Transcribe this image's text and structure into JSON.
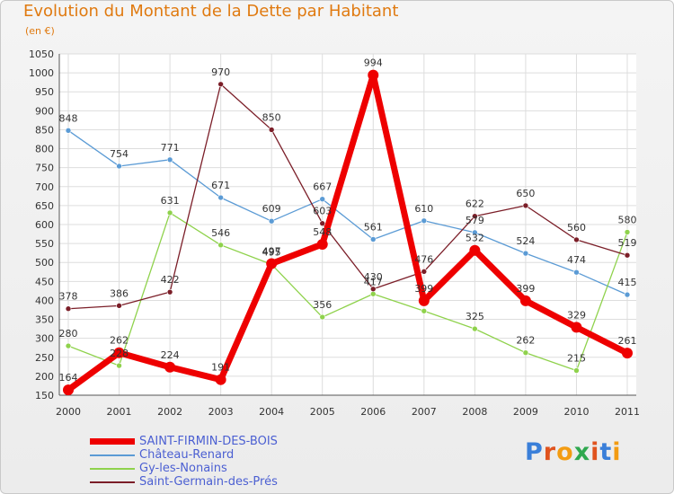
{
  "title": "Evolution du Montant de la Dette par Habitant",
  "subtitle": "(en €)",
  "logo_text": "Proxiti",
  "chart_data": {
    "type": "line",
    "categories": [
      "2000",
      "2001",
      "2002",
      "2003",
      "2004",
      "2005",
      "2006",
      "2007",
      "2008",
      "2009",
      "2010",
      "2011"
    ],
    "ylim": [
      150,
      1050
    ],
    "yticks": [
      150,
      200,
      250,
      300,
      350,
      400,
      450,
      500,
      550,
      600,
      650,
      700,
      750,
      800,
      850,
      900,
      950,
      1000,
      1050
    ],
    "grid": true,
    "legend_position": "bottom-left",
    "series": [
      {
        "name": "SAINT-FIRMIN-DES-BOIS",
        "color": "#ee0000",
        "values": [
          164,
          262,
          224,
          191,
          497,
          548,
          994,
          399,
          532,
          399,
          329,
          261
        ],
        "labels": [
          "164",
          "262",
          "224",
          "191",
          "497",
          "548",
          "994",
          "399",
          "532",
          "399",
          "329",
          "261"
        ]
      },
      {
        "name": "Château-Renard",
        "color": "#5b9bd5",
        "values": [
          848,
          754,
          771,
          671,
          609,
          667,
          561,
          610,
          579,
          524,
          474,
          415
        ],
        "labels": [
          "848",
          "754",
          "771",
          "671",
          "609",
          "667",
          "561",
          "610",
          "579",
          "524",
          "474",
          "415"
        ]
      },
      {
        "name": "Gy-les-Nonains",
        "color": "#8fd24c",
        "values": [
          280,
          228,
          631,
          546,
          495,
          356,
          417,
          372,
          325,
          262,
          215,
          580
        ],
        "labels": [
          "280",
          "228",
          "631",
          "546",
          "495",
          "356",
          "417",
          "",
          "325",
          "262",
          "215",
          "580"
        ]
      },
      {
        "name": "Saint-Germain-des-Prés",
        "color": "#7b1e28",
        "values": [
          378,
          386,
          422,
          970,
          850,
          603,
          430,
          476,
          622,
          650,
          560,
          519
        ],
        "labels": [
          "378",
          "386",
          "422",
          "970",
          "850",
          "603",
          "430",
          "476",
          "622",
          "650",
          "560",
          "519"
        ]
      }
    ]
  }
}
